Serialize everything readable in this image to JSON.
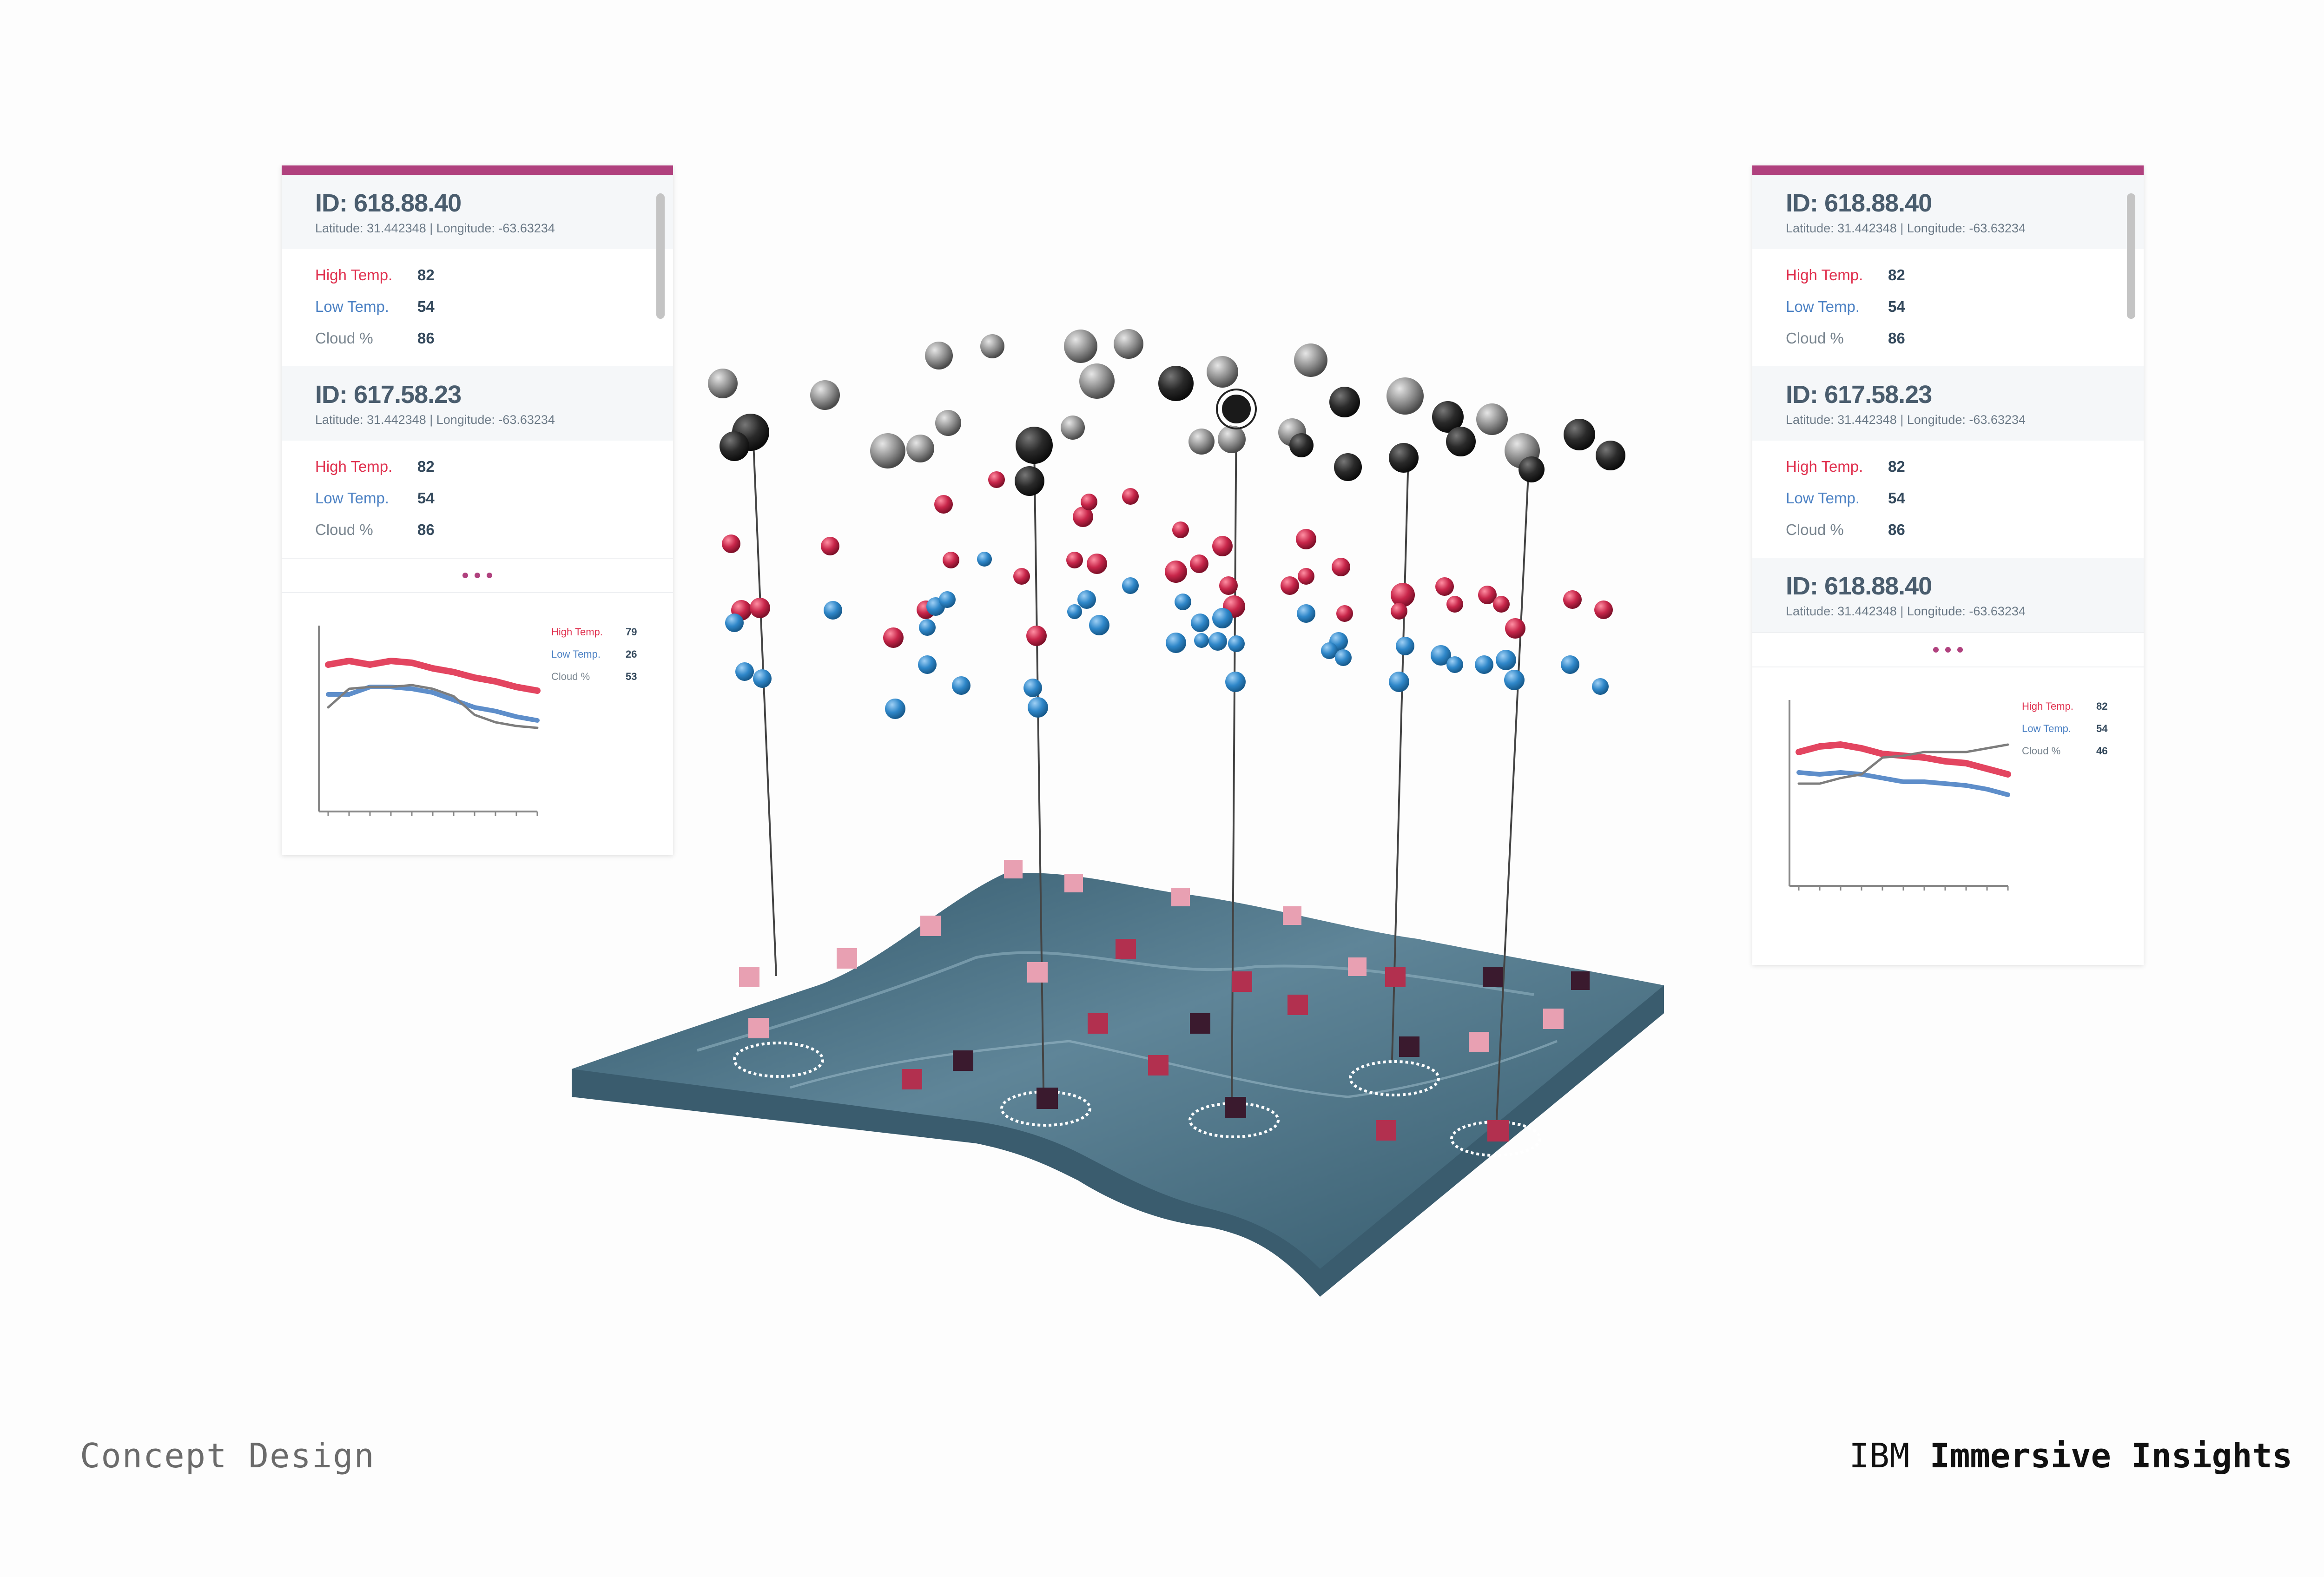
{
  "footer": {
    "left_label": "Concept Design",
    "brand": "IBM",
    "product": "Immersive Insights"
  },
  "colors": {
    "accent": "#b0417e",
    "high_temp": "#e0314f",
    "low_temp": "#4d82c4",
    "cloud": "#7a8690",
    "terrain": "#3c5f72"
  },
  "left_panel": {
    "entries": [
      {
        "id": "ID: 618.88.40",
        "coords": "Latitude: 31.442348 | Longitude: -63.63234",
        "metrics": [
          {
            "label": "High Temp.",
            "value": "82"
          },
          {
            "label": "Low Temp.",
            "value": "54"
          },
          {
            "label": "Cloud %",
            "value": "86"
          }
        ]
      },
      {
        "id": "ID: 617.58.23",
        "coords": "Latitude: 31.442348 | Longitude: -63.63234",
        "metrics": [
          {
            "label": "High Temp.",
            "value": "82"
          },
          {
            "label": "Low Temp.",
            "value": "54"
          },
          {
            "label": "Cloud %",
            "value": "86"
          }
        ]
      }
    ],
    "more_icon": "more-dots-icon",
    "chart_legend": [
      {
        "label": "High Temp.",
        "value": "79"
      },
      {
        "label": "Low Temp.",
        "value": "26"
      },
      {
        "label": "Cloud %",
        "value": "53"
      }
    ]
  },
  "right_panel": {
    "entries": [
      {
        "id": "ID: 618.88.40",
        "coords": "Latitude: 31.442348 | Longitude: -63.63234",
        "metrics": [
          {
            "label": "High Temp.",
            "value": "82"
          },
          {
            "label": "Low Temp.",
            "value": "54"
          },
          {
            "label": "Cloud %",
            "value": "86"
          }
        ]
      },
      {
        "id": "ID: 617.58.23",
        "coords": "Latitude: 31.442348 | Longitude: -63.63234",
        "metrics": [
          {
            "label": "High Temp.",
            "value": "82"
          },
          {
            "label": "Low Temp.",
            "value": "54"
          },
          {
            "label": "Cloud %",
            "value": "86"
          }
        ]
      },
      {
        "id": "ID: 618.88.40",
        "coords": "Latitude: 31.442348 | Longitude: -63.63234"
      }
    ],
    "more_icon": "more-dots-icon",
    "chart_legend": [
      {
        "label": "High Temp.",
        "value": "82"
      },
      {
        "label": "Low Temp.",
        "value": "54"
      },
      {
        "label": "Cloud %",
        "value": "46"
      }
    ]
  },
  "chart_data": [
    {
      "type": "line",
      "x": [
        1,
        2,
        3,
        4,
        5,
        6,
        7,
        8,
        9,
        10,
        11
      ],
      "series": [
        {
          "name": "High Temp.",
          "values": [
            79,
            81,
            79,
            81,
            80,
            77,
            75,
            72,
            70,
            67,
            65
          ]
        },
        {
          "name": "Low Temp.",
          "values": [
            63,
            63,
            67,
            67,
            66,
            64,
            60,
            56,
            54,
            51,
            49
          ]
        },
        {
          "name": "Cloud %",
          "values": [
            56,
            66,
            67,
            67,
            68,
            66,
            62,
            52,
            48,
            46,
            45
          ]
        }
      ],
      "ylim": [
        0,
        100
      ],
      "grid": false,
      "legend": "right"
    },
    {
      "type": "line",
      "x": [
        1,
        2,
        3,
        4,
        5,
        6,
        7,
        8,
        9,
        10,
        11
      ],
      "series": [
        {
          "name": "High Temp.",
          "values": [
            72,
            75,
            76,
            74,
            71,
            70,
            69,
            67,
            66,
            63,
            60
          ]
        },
        {
          "name": "Low Temp.",
          "values": [
            61,
            60,
            61,
            60,
            58,
            56,
            56,
            55,
            54,
            52,
            49
          ]
        },
        {
          "name": "Cloud %",
          "values": [
            55,
            55,
            58,
            60,
            69,
            70,
            72,
            72,
            72,
            74,
            76
          ]
        }
      ],
      "ylim": [
        0,
        100
      ],
      "grid": false,
      "legend": "right"
    }
  ]
}
